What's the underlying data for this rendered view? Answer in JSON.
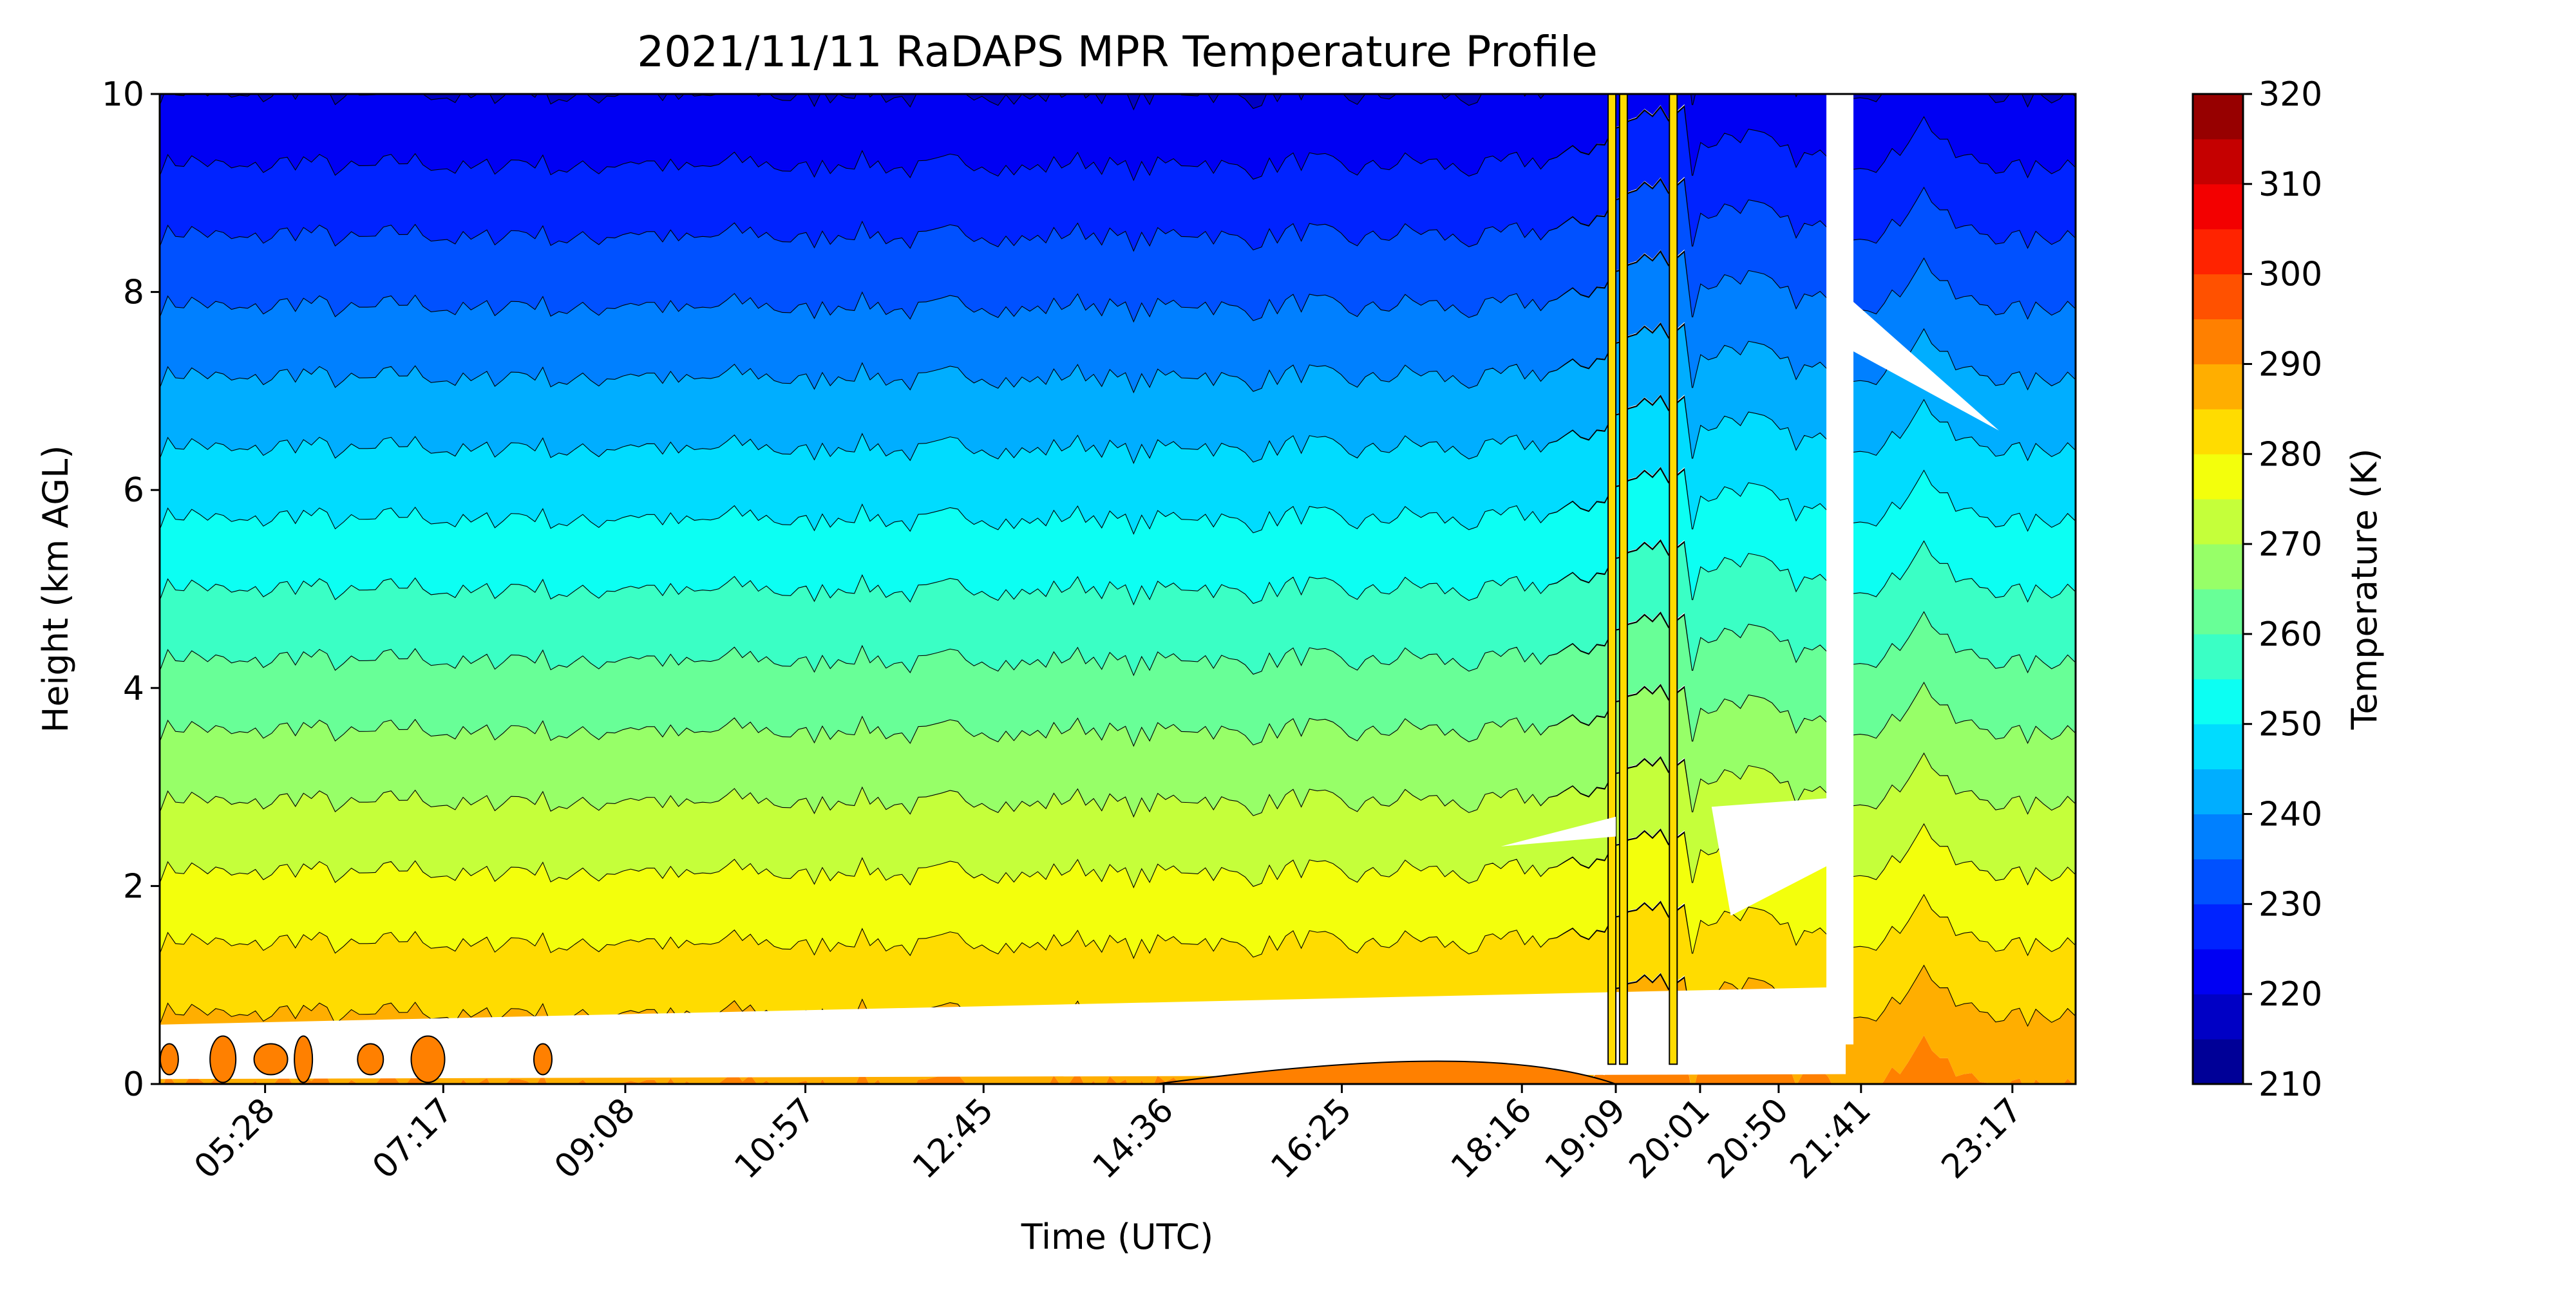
{
  "chart_data": {
    "type": "heatmap",
    "subtype": "filled-contour",
    "title": "2021/11/11 RaDAPS MPR Temperature Profile",
    "xlabel": "Time (UTC)",
    "ylabel": "Height (km AGL)",
    "x_ticks": [
      "05:28",
      "07:17",
      "09:08",
      "10:57",
      "12:45",
      "14:36",
      "16:25",
      "18:16",
      "19:09",
      "20:01",
      "20:50",
      "21:41",
      "23:17"
    ],
    "x_tick_positions": [
      0.055,
      0.148,
      0.243,
      0.337,
      0.43,
      0.524,
      0.617,
      0.711,
      0.76,
      0.804,
      0.845,
      0.888,
      0.967
    ],
    "ylim": [
      0,
      10
    ],
    "y_ticks": [
      "0",
      "2",
      "4",
      "6",
      "8",
      "10"
    ],
    "colorbar": {
      "label": "Temperature (K)",
      "range": [
        210,
        320
      ],
      "step": 5,
      "tick_labels": [
        "210",
        "220",
        "230",
        "240",
        "250",
        "260",
        "270",
        "280",
        "290",
        "300",
        "310",
        "320"
      ],
      "colormap": "jet"
    },
    "profile": {
      "surface_temperature": 290,
      "lapse_rate_k_per_km": 7.0,
      "contour_interval_k": 5
    },
    "features": [
      {
        "kind": "missing-data-band",
        "description": "low-level gap near 0.3-0.8 km"
      },
      {
        "kind": "convective-spikes",
        "time_range": [
          "19:09",
          "20:01"
        ]
      },
      {
        "kind": "missing-data-column",
        "time": "21:41"
      }
    ]
  }
}
